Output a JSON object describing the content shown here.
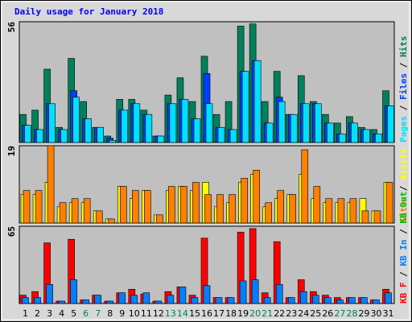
{
  "chart_data": [
    {
      "type": "bar",
      "title": "Daily usage for January 2018",
      "categories": [
        1,
        2,
        3,
        4,
        5,
        6,
        7,
        8,
        9,
        10,
        11,
        12,
        13,
        14,
        15,
        16,
        17,
        18,
        19,
        20,
        21,
        22,
        23,
        24,
        25,
        26,
        27,
        28,
        29,
        30,
        31
      ],
      "weekend_days": [
        6,
        7,
        13,
        14,
        20,
        21,
        27,
        28
      ],
      "weekend_color": "#00805c",
      "legend_separator": " / ",
      "legend_reversed": true,
      "ylim": [
        0,
        56
      ],
      "series": [
        {
          "name": "Hits",
          "color": "#00805c",
          "values": [
            13,
            15,
            34,
            7,
            39,
            19,
            7,
            3,
            20,
            20,
            15,
            3,
            22,
            30,
            19,
            40,
            13,
            19,
            54,
            55,
            19,
            33,
            13,
            31,
            19,
            13,
            9,
            12,
            7,
            6,
            24
          ]
        },
        {
          "name": "Files",
          "color": "#0040ff",
          "values": [
            8,
            6,
            18,
            6,
            24,
            11,
            7,
            2,
            15,
            18,
            13,
            3,
            18,
            20,
            11,
            32,
            7,
            6,
            33,
            38,
            9,
            21,
            13,
            18,
            18,
            9,
            4,
            9,
            6,
            4,
            17
          ]
        },
        {
          "name": "Pages",
          "color": "#00e0ff",
          "values": [
            8,
            6,
            18,
            6,
            21,
            11,
            7,
            1,
            15,
            18,
            13,
            3,
            18,
            20,
            11,
            18,
            7,
            6,
            33,
            38,
            9,
            19,
            13,
            18,
            18,
            9,
            4,
            9,
            6,
            4,
            17
          ]
        }
      ]
    },
    {
      "type": "bar",
      "legend_separator": " / ",
      "legend_reversed": true,
      "ylim": [
        0,
        19
      ],
      "series": [
        {
          "name": "Visits",
          "color": "#ffff00",
          "values": [
            7,
            7,
            10,
            4,
            5,
            5,
            3,
            1,
            9,
            6,
            8,
            2,
            8,
            9,
            8,
            10,
            4,
            5,
            10,
            12,
            4,
            6,
            7,
            12,
            6,
            5,
            5,
            5,
            6,
            3,
            10
          ]
        },
        {
          "name": "Sites",
          "color": "#ff8000",
          "values": [
            8,
            8,
            19,
            5,
            6,
            6,
            3,
            1,
            9,
            8,
            8,
            2,
            9,
            9,
            10,
            7,
            7,
            7,
            11,
            13,
            5,
            8,
            7,
            18,
            9,
            6,
            6,
            6,
            3,
            3,
            10
          ]
        }
      ]
    },
    {
      "type": "bar",
      "legend_separator": " / ",
      "legend_reversed": false,
      "ylim": [
        0,
        65
      ],
      "series": [
        {
          "name": "KB F",
          "color": "#ff0000",
          "values": [
            7,
            10,
            51,
            2,
            54,
            3,
            7,
            2,
            9,
            12,
            8,
            2,
            10,
            14,
            7,
            55,
            5,
            5,
            60,
            63,
            9,
            52,
            5,
            20,
            10,
            7,
            5,
            5,
            5,
            3,
            12
          ]
        },
        {
          "name": "KB In",
          "color": "#0080ff",
          "values": [
            5,
            5,
            16,
            2,
            20,
            3,
            7,
            2,
            9,
            7,
            9,
            2,
            7,
            14,
            5,
            15,
            5,
            5,
            19,
            20,
            5,
            16,
            5,
            10,
            7,
            5,
            3,
            5,
            5,
            3,
            9
          ]
        },
        {
          "name": "KB Out",
          "color": "#00c000",
          "values": [
            0,
            0,
            0,
            0,
            0,
            0,
            0,
            0,
            0,
            0,
            0,
            0,
            0,
            0,
            0,
            0,
            0,
            0,
            0,
            0,
            0,
            0,
            0,
            0,
            0,
            0,
            0,
            0,
            0,
            0,
            0
          ]
        }
      ]
    }
  ]
}
